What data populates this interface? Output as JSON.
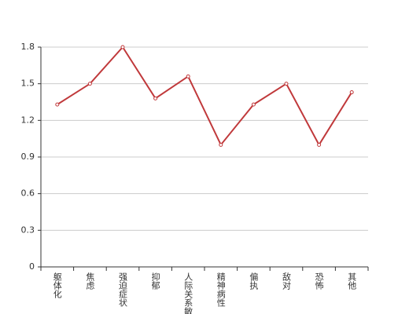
{
  "chart_data": {
    "type": "line",
    "categories": [
      "躯体化",
      "焦虑",
      "强迫症状",
      "抑郁",
      "人际关系敏感",
      "精神病性",
      "偏执",
      "敌对",
      "恐怖",
      "其他"
    ],
    "series": [
      {
        "color": "#c0393b",
        "values": [
          1.33,
          1.5,
          1.8,
          1.38,
          1.56,
          1.0,
          1.33,
          1.5,
          1.0,
          1.43
        ]
      }
    ],
    "ylim": [
      0,
      1.8
    ],
    "yticks": [
      0,
      0.3,
      0.6,
      0.9,
      1.2,
      1.5,
      1.8
    ],
    "grid": true
  }
}
